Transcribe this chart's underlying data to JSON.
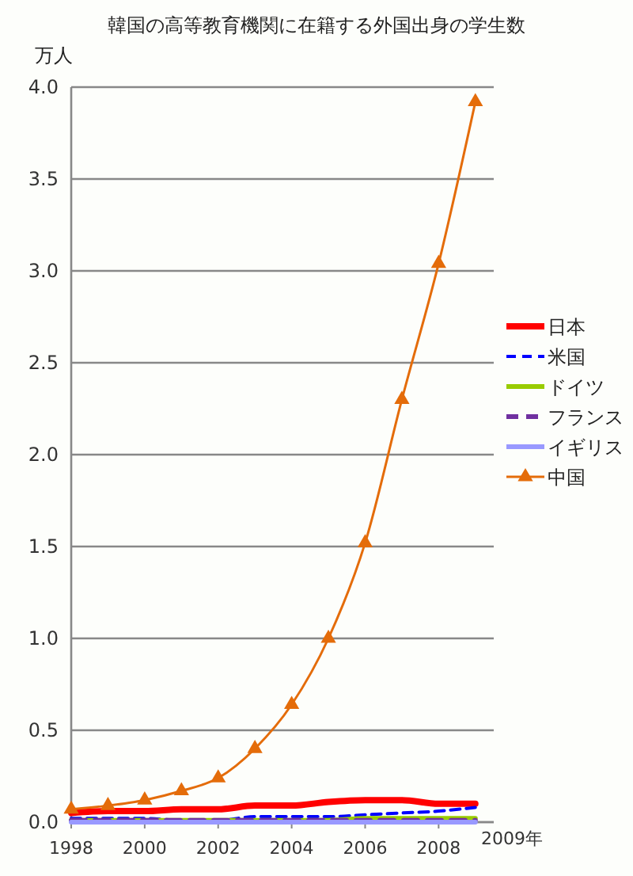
{
  "chart_data": {
    "type": "line",
    "title": "韓国の高等教育機関に在籍する外国出身の学生数",
    "ylabel": "万人",
    "x": [
      1998,
      1999,
      2000,
      2001,
      2002,
      2003,
      2004,
      2005,
      2006,
      2007,
      2008,
      2009
    ],
    "xlabel": "2009年",
    "xlim": [
      1998,
      2009.5
    ],
    "xticks": [
      1998,
      2000,
      2002,
      2004,
      2006,
      2008
    ],
    "ylim": [
      0,
      4
    ],
    "yticks": [
      {
        "value": 0,
        "label": "0.0"
      },
      0.5,
      {
        "value": 1,
        "label": "1.0"
      },
      1.5,
      {
        "value": 2,
        "label": "2.0"
      },
      2.5,
      {
        "value": 3,
        "label": "3.0"
      },
      3.5,
      {
        "value": 4,
        "label": "4.0"
      }
    ],
    "grid": "y",
    "legend": "right",
    "series": [
      {
        "name": "日本",
        "color": "#ff0000",
        "line_style": "solid",
        "marker": "none",
        "values": [
          0.05,
          0.06,
          0.06,
          0.07,
          0.07,
          0.09,
          0.09,
          0.11,
          0.12,
          0.12,
          0.1,
          0.1
        ]
      },
      {
        "name": "米国",
        "color": "#0000ff",
        "line_style": "dashed",
        "marker": "none",
        "values": [
          0.02,
          0.02,
          0.02,
          0.01,
          0.01,
          0.03,
          0.03,
          0.03,
          0.04,
          0.05,
          0.06,
          0.08
        ]
      },
      {
        "name": "ドイツ",
        "color": "#99cc00",
        "line_style": "solid",
        "marker": "none",
        "values": [
          0.01,
          0.01,
          0.01,
          0.01,
          0.01,
          0.01,
          0.01,
          0.01,
          0.02,
          0.02,
          0.02,
          0.02
        ]
      },
      {
        "name": "フランス",
        "color": "#7030a0",
        "line_style": "dashed",
        "marker": "none",
        "values": [
          0.01,
          0.01,
          0.01,
          0.01,
          0.01,
          0.01,
          0.01,
          0.01,
          0.01,
          0.01,
          0.01,
          0.01
        ]
      },
      {
        "name": "イギリス",
        "color": "#9999ff",
        "line_style": "solid",
        "marker": "none",
        "values": [
          0,
          0,
          0,
          0,
          0,
          0,
          0,
          0,
          0,
          0,
          0,
          0
        ]
      },
      {
        "name": "中国",
        "color": "#e46c0a",
        "line_style": "solid",
        "marker": "triangle",
        "values": [
          0.07,
          0.09,
          0.12,
          0.17,
          0.24,
          0.4,
          0.64,
          1.0,
          1.52,
          2.3,
          3.04,
          3.92
        ]
      }
    ]
  }
}
